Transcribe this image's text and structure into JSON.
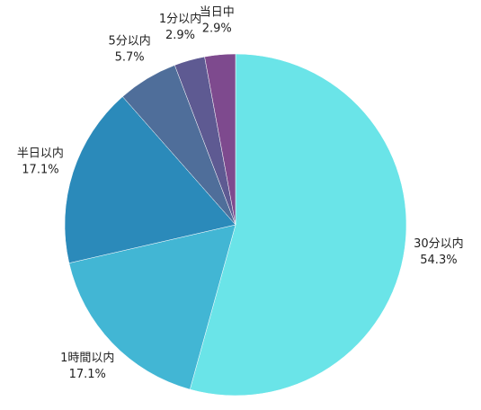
{
  "chart_data": {
    "type": "pie",
    "categories": [
      "30分以内",
      "1時間以内",
      "半日以内",
      "5分以内",
      "1分以内",
      "当日中"
    ],
    "values": [
      54.3,
      17.1,
      17.1,
      5.7,
      2.9,
      2.9
    ],
    "value_labels": [
      "54.3%",
      "17.1%",
      "17.1%",
      "5.7%",
      "2.9%",
      "2.9%"
    ],
    "colors": [
      "#6ae4e8",
      "#42b6d4",
      "#2b8aba",
      "#4f6e9a",
      "#5e5a92",
      "#7e4a8e"
    ]
  }
}
